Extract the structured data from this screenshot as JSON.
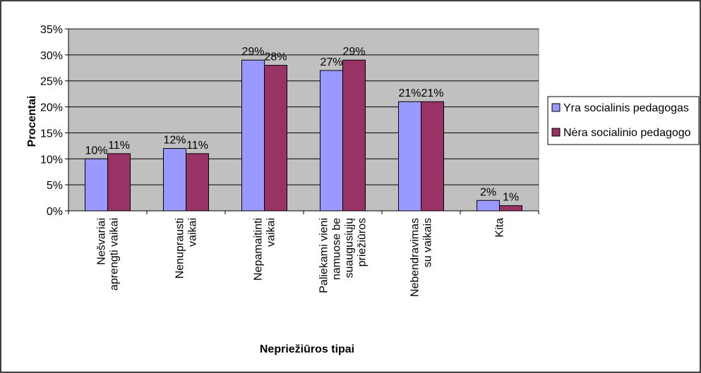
{
  "chart_data": {
    "type": "bar",
    "categories": [
      [
        "Nešvariai",
        "aprengti vaikai"
      ],
      [
        "Nenuprausti",
        "vaikai"
      ],
      [
        "Nepamaitinti",
        "vaikai"
      ],
      [
        "Paliekami vieni",
        "namuose be",
        "suaugusiųjų",
        "priežiūros"
      ],
      [
        "Nebendravimas",
        "su vaikais"
      ],
      [
        "Kita"
      ]
    ],
    "series": [
      {
        "name": "Yra socialinis pedagogas",
        "values": [
          10,
          12,
          29,
          27,
          21,
          2
        ],
        "labels": [
          "10%",
          "12%",
          "29%",
          "27%",
          "21%",
          "2%"
        ],
        "color": "#9999ff"
      },
      {
        "name": "Nėra socialinio pedagogo",
        "values": [
          11,
          11,
          28,
          29,
          21,
          1
        ],
        "labels": [
          "11%",
          "11%",
          "28%",
          "29%",
          "21%",
          "1%"
        ],
        "color": "#993366"
      }
    ],
    "ylim": [
      0,
      35
    ],
    "yticks": [
      0,
      5,
      10,
      15,
      20,
      25,
      30,
      35
    ],
    "ytick_labels": [
      "0%",
      "5%",
      "10%",
      "15%",
      "20%",
      "25%",
      "30%",
      "35%"
    ],
    "xlabel": "Nepriežiūros tipai",
    "ylabel": "Procentai",
    "plot_background": "#c0c0c0",
    "grid": true,
    "legend_position": "right"
  }
}
